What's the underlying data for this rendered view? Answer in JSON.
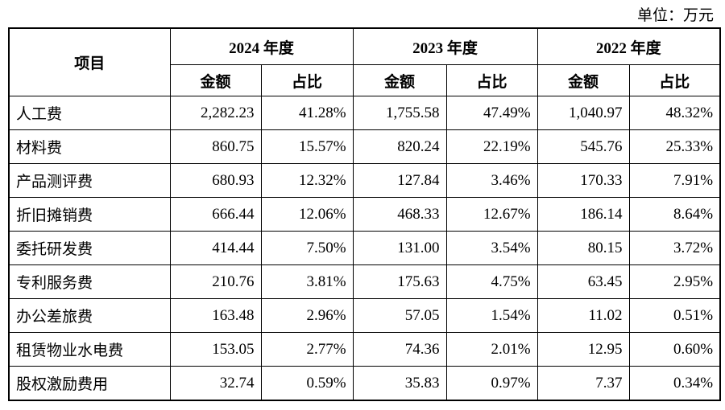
{
  "unit": "单位：万元",
  "table": {
    "header": {
      "item": "项目",
      "years": [
        "2024 年度",
        "2023 年度",
        "2022 年度"
      ],
      "subheaders": [
        "金额",
        "占比",
        "金额",
        "占比",
        "金额",
        "占比"
      ]
    },
    "rows": [
      [
        "人工费",
        "2,282.23",
        "41.28%",
        "1,755.58",
        "47.49%",
        "1,040.97",
        "48.32%"
      ],
      [
        "材料费",
        "860.75",
        "15.57%",
        "820.24",
        "22.19%",
        "545.76",
        "25.33%"
      ],
      [
        "产品测评费",
        "680.93",
        "12.32%",
        "127.84",
        "3.46%",
        "170.33",
        "7.91%"
      ],
      [
        "折旧摊销费",
        "666.44",
        "12.06%",
        "468.33",
        "12.67%",
        "186.14",
        "8.64%"
      ],
      [
        "委托研发费",
        "414.44",
        "7.50%",
        "131.00",
        "3.54%",
        "80.15",
        "3.72%"
      ],
      [
        "专利服务费",
        "210.76",
        "3.81%",
        "175.63",
        "4.75%",
        "63.45",
        "2.95%"
      ],
      [
        "办公差旅费",
        "163.48",
        "2.96%",
        "57.05",
        "1.54%",
        "11.02",
        "0.51%"
      ],
      [
        "租赁物业水电费",
        "153.05",
        "2.77%",
        "74.36",
        "2.01%",
        "12.95",
        "0.60%"
      ],
      [
        "股权激励费用",
        "32.74",
        "0.59%",
        "35.83",
        "0.97%",
        "7.37",
        "0.34%"
      ]
    ]
  }
}
